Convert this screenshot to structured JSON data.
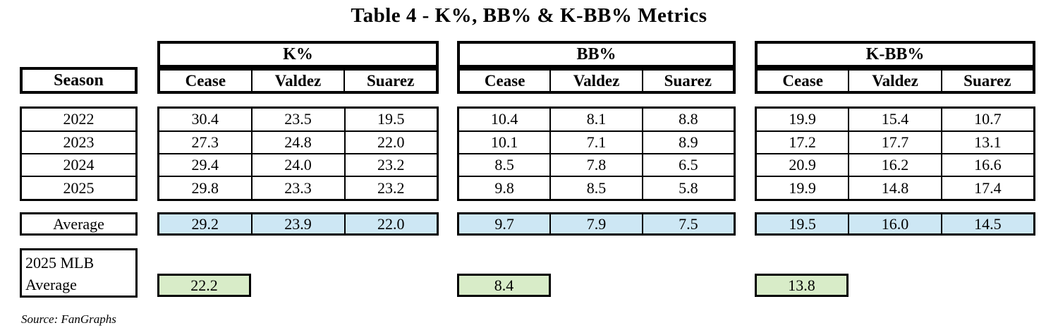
{
  "title": "Table 4 - K%, BB% & K-BB% Metrics",
  "source_note": "Source: FanGraphs",
  "season": {
    "header": "Season",
    "years": [
      "2022",
      "2023",
      "2024",
      "2025"
    ],
    "average_label": "Average",
    "mlb_average_label": [
      "2025 MLB",
      "Average"
    ]
  },
  "colors": {
    "average_row_bg": "#cde7f4",
    "mlb_average_bg": "#d8ecc8",
    "border": "#000000",
    "background": "#ffffff"
  },
  "chart_data": [
    {
      "type": "table",
      "title": "K%",
      "columns": [
        "Cease",
        "Valdez",
        "Suarez"
      ],
      "row_labels": [
        "2022",
        "2023",
        "2024",
        "2025"
      ],
      "rows": [
        [
          "30.4",
          "23.5",
          "19.5"
        ],
        [
          "27.3",
          "24.8",
          "22.0"
        ],
        [
          "29.4",
          "24.0",
          "23.2"
        ],
        [
          "29.8",
          "23.3",
          "23.2"
        ]
      ],
      "average": [
        "29.2",
        "23.9",
        "22.0"
      ],
      "mlb_average_2025": "22.2"
    },
    {
      "type": "table",
      "title": "BB%",
      "columns": [
        "Cease",
        "Valdez",
        "Suarez"
      ],
      "row_labels": [
        "2022",
        "2023",
        "2024",
        "2025"
      ],
      "rows": [
        [
          "10.4",
          "8.1",
          "8.8"
        ],
        [
          "10.1",
          "7.1",
          "8.9"
        ],
        [
          "8.5",
          "7.8",
          "6.5"
        ],
        [
          "9.8",
          "8.5",
          "5.8"
        ]
      ],
      "average": [
        "9.7",
        "7.9",
        "7.5"
      ],
      "mlb_average_2025": "8.4"
    },
    {
      "type": "table",
      "title": "K-BB%",
      "columns": [
        "Cease",
        "Valdez",
        "Suarez"
      ],
      "row_labels": [
        "2022",
        "2023",
        "2024",
        "2025"
      ],
      "rows": [
        [
          "19.9",
          "15.4",
          "10.7"
        ],
        [
          "17.2",
          "17.7",
          "13.1"
        ],
        [
          "20.9",
          "16.2",
          "16.6"
        ],
        [
          "19.9",
          "14.8",
          "17.4"
        ]
      ],
      "average": [
        "19.5",
        "16.0",
        "14.5"
      ],
      "mlb_average_2025": "13.8"
    }
  ]
}
